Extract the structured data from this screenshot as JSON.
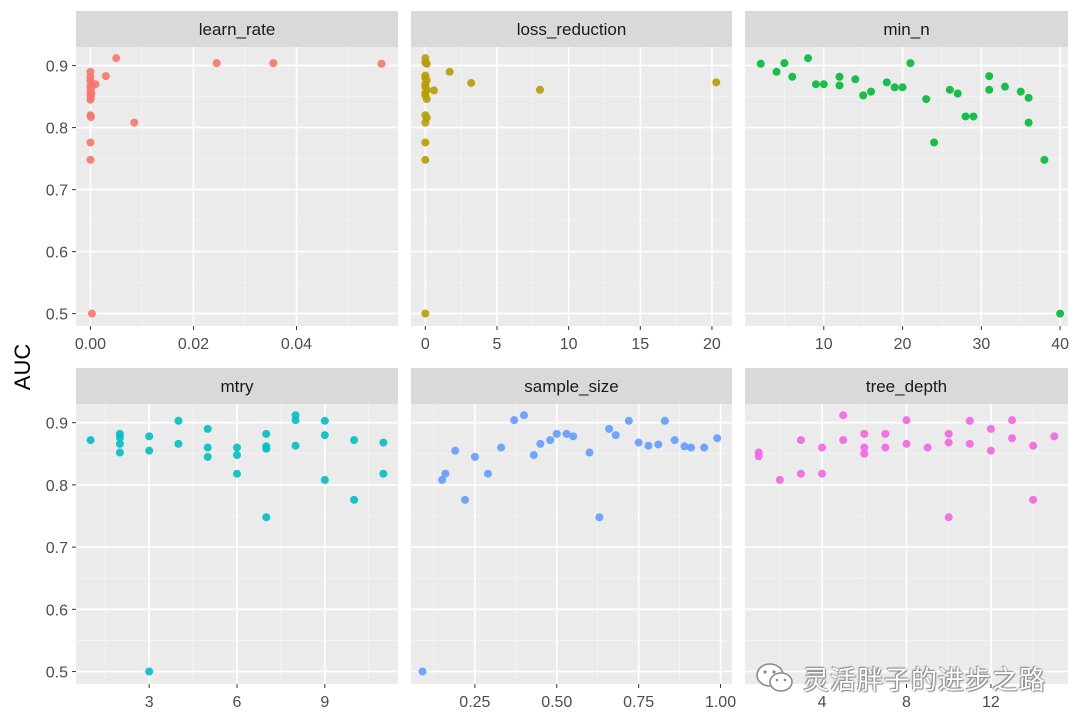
{
  "chart_data": {
    "type": "scatter",
    "ylabel": "AUC",
    "ylim": [
      0.48,
      0.93
    ],
    "y_ticks": [
      0.5,
      0.6,
      0.7,
      0.8,
      0.9
    ],
    "y_tick_labels": [
      "0.5",
      "0.6",
      "0.7",
      "0.8",
      "0.9"
    ],
    "grid": true,
    "panels": [
      {
        "name": "learn_rate",
        "color": "#F8766D",
        "xlim": [
          -0.0028,
          0.0597
        ],
        "x_ticks": [
          0,
          0.02,
          0.04
        ],
        "x_tick_labels": [
          "0.00",
          "0.02",
          "0.04"
        ],
        "points": [
          {
            "x": 0.0,
            "y": 0.89
          },
          {
            "x": 0.0,
            "y": 0.882
          },
          {
            "x": 0.0,
            "y": 0.876
          },
          {
            "x": 0.0001,
            "y": 0.87
          },
          {
            "x": 0.0,
            "y": 0.866
          },
          {
            "x": 0.0001,
            "y": 0.862
          },
          {
            "x": 0.0,
            "y": 0.858
          },
          {
            "x": 0.0002,
            "y": 0.855
          },
          {
            "x": 0.0,
            "y": 0.852
          },
          {
            "x": 0.0001,
            "y": 0.848
          },
          {
            "x": 0.0,
            "y": 0.845
          },
          {
            "x": 0.0,
            "y": 0.82
          },
          {
            "x": 0.0001,
            "y": 0.817
          },
          {
            "x": 0.0,
            "y": 0.776
          },
          {
            "x": 0.0,
            "y": 0.748
          },
          {
            "x": 0.0003,
            "y": 0.5
          },
          {
            "x": 0.001,
            "y": 0.87
          },
          {
            "x": 0.003,
            "y": 0.883
          },
          {
            "x": 0.005,
            "y": 0.912
          },
          {
            "x": 0.0085,
            "y": 0.808
          },
          {
            "x": 0.0245,
            "y": 0.904
          },
          {
            "x": 0.0355,
            "y": 0.904
          },
          {
            "x": 0.0565,
            "y": 0.903
          }
        ]
      },
      {
        "name": "loss_reduction",
        "color": "#B79F00",
        "xlim": [
          -1.0,
          21.4
        ],
        "x_ticks": [
          0,
          5,
          10,
          15,
          20
        ],
        "x_tick_labels": [
          "0",
          "5",
          "10",
          "15",
          "20"
        ],
        "points": [
          {
            "x": 0.0,
            "y": 0.912
          },
          {
            "x": 0.0,
            "y": 0.905
          },
          {
            "x": 0.1,
            "y": 0.903
          },
          {
            "x": 0.0,
            "y": 0.884
          },
          {
            "x": 0.0,
            "y": 0.88
          },
          {
            "x": 0.1,
            "y": 0.876
          },
          {
            "x": 0.0,
            "y": 0.87
          },
          {
            "x": 0.0,
            "y": 0.866
          },
          {
            "x": 0.1,
            "y": 0.861
          },
          {
            "x": 0.0,
            "y": 0.856
          },
          {
            "x": 0.0,
            "y": 0.852
          },
          {
            "x": 0.1,
            "y": 0.846
          },
          {
            "x": 0.0,
            "y": 0.82
          },
          {
            "x": 0.1,
            "y": 0.816
          },
          {
            "x": 0.0,
            "y": 0.808
          },
          {
            "x": 0.0,
            "y": 0.776
          },
          {
            "x": 0.0,
            "y": 0.748
          },
          {
            "x": 0.0,
            "y": 0.5
          },
          {
            "x": 0.6,
            "y": 0.86
          },
          {
            "x": 1.7,
            "y": 0.89
          },
          {
            "x": 3.2,
            "y": 0.872
          },
          {
            "x": 8.0,
            "y": 0.861
          },
          {
            "x": 20.3,
            "y": 0.873
          }
        ]
      },
      {
        "name": "min_n",
        "color": "#00BA38",
        "xlim": [
          0.0,
          41.0
        ],
        "x_ticks": [
          10,
          20,
          30,
          40
        ],
        "x_tick_labels": [
          "10",
          "20",
          "30",
          "40"
        ],
        "points": [
          {
            "x": 2,
            "y": 0.903
          },
          {
            "x": 4,
            "y": 0.89
          },
          {
            "x": 5,
            "y": 0.904
          },
          {
            "x": 6,
            "y": 0.882
          },
          {
            "x": 8,
            "y": 0.912
          },
          {
            "x": 9,
            "y": 0.87
          },
          {
            "x": 10,
            "y": 0.87
          },
          {
            "x": 12,
            "y": 0.882
          },
          {
            "x": 12,
            "y": 0.868
          },
          {
            "x": 14,
            "y": 0.878
          },
          {
            "x": 15,
            "y": 0.852
          },
          {
            "x": 16,
            "y": 0.858
          },
          {
            "x": 18,
            "y": 0.873
          },
          {
            "x": 19,
            "y": 0.865
          },
          {
            "x": 20,
            "y": 0.865
          },
          {
            "x": 21,
            "y": 0.904
          },
          {
            "x": 23,
            "y": 0.846
          },
          {
            "x": 24,
            "y": 0.776
          },
          {
            "x": 26,
            "y": 0.861
          },
          {
            "x": 27,
            "y": 0.855
          },
          {
            "x": 28,
            "y": 0.818
          },
          {
            "x": 29,
            "y": 0.818
          },
          {
            "x": 31,
            "y": 0.883
          },
          {
            "x": 31,
            "y": 0.861
          },
          {
            "x": 33,
            "y": 0.866
          },
          {
            "x": 35,
            "y": 0.858
          },
          {
            "x": 36,
            "y": 0.848
          },
          {
            "x": 36,
            "y": 0.808
          },
          {
            "x": 38,
            "y": 0.748
          },
          {
            "x": 40,
            "y": 0.5
          }
        ]
      },
      {
        "name": "mtry",
        "color": "#00BFC4",
        "xlim": [
          0.5,
          11.5
        ],
        "x_ticks": [
          3,
          6,
          9
        ],
        "x_tick_labels": [
          "3",
          "6",
          "9"
        ],
        "points": [
          {
            "x": 1,
            "y": 0.872
          },
          {
            "x": 2,
            "y": 0.882
          },
          {
            "x": 2,
            "y": 0.876
          },
          {
            "x": 2,
            "y": 0.866
          },
          {
            "x": 2,
            "y": 0.852
          },
          {
            "x": 3,
            "y": 0.878
          },
          {
            "x": 3,
            "y": 0.855
          },
          {
            "x": 3,
            "y": 0.5
          },
          {
            "x": 4,
            "y": 0.903
          },
          {
            "x": 4,
            "y": 0.866
          },
          {
            "x": 5,
            "y": 0.89
          },
          {
            "x": 5,
            "y": 0.86
          },
          {
            "x": 5,
            "y": 0.845
          },
          {
            "x": 6,
            "y": 0.86
          },
          {
            "x": 6,
            "y": 0.848
          },
          {
            "x": 6,
            "y": 0.818
          },
          {
            "x": 7,
            "y": 0.882
          },
          {
            "x": 7,
            "y": 0.862
          },
          {
            "x": 7,
            "y": 0.858
          },
          {
            "x": 7,
            "y": 0.748
          },
          {
            "x": 8,
            "y": 0.912
          },
          {
            "x": 8,
            "y": 0.904
          },
          {
            "x": 8,
            "y": 0.863
          },
          {
            "x": 9,
            "y": 0.903
          },
          {
            "x": 9,
            "y": 0.88
          },
          {
            "x": 9,
            "y": 0.808
          },
          {
            "x": 10,
            "y": 0.872
          },
          {
            "x": 10,
            "y": 0.776
          },
          {
            "x": 11,
            "y": 0.868
          },
          {
            "x": 11,
            "y": 0.818
          }
        ]
      },
      {
        "name": "sample_size",
        "color": "#619CFF",
        "xlim": [
          0.055,
          1.035
        ],
        "x_ticks": [
          0.25,
          0.5,
          0.75,
          1.0
        ],
        "x_tick_labels": [
          "0.25",
          "0.50",
          "0.75",
          "1.00"
        ],
        "points": [
          {
            "x": 0.09,
            "y": 0.5
          },
          {
            "x": 0.15,
            "y": 0.808
          },
          {
            "x": 0.16,
            "y": 0.818
          },
          {
            "x": 0.19,
            "y": 0.855
          },
          {
            "x": 0.22,
            "y": 0.776
          },
          {
            "x": 0.25,
            "y": 0.845
          },
          {
            "x": 0.29,
            "y": 0.818
          },
          {
            "x": 0.33,
            "y": 0.86
          },
          {
            "x": 0.37,
            "y": 0.904
          },
          {
            "x": 0.4,
            "y": 0.912
          },
          {
            "x": 0.43,
            "y": 0.848
          },
          {
            "x": 0.45,
            "y": 0.866
          },
          {
            "x": 0.48,
            "y": 0.872
          },
          {
            "x": 0.5,
            "y": 0.882
          },
          {
            "x": 0.53,
            "y": 0.882
          },
          {
            "x": 0.55,
            "y": 0.878
          },
          {
            "x": 0.6,
            "y": 0.852
          },
          {
            "x": 0.63,
            "y": 0.748
          },
          {
            "x": 0.66,
            "y": 0.89
          },
          {
            "x": 0.68,
            "y": 0.88
          },
          {
            "x": 0.72,
            "y": 0.903
          },
          {
            "x": 0.75,
            "y": 0.868
          },
          {
            "x": 0.78,
            "y": 0.863
          },
          {
            "x": 0.81,
            "y": 0.865
          },
          {
            "x": 0.83,
            "y": 0.903
          },
          {
            "x": 0.86,
            "y": 0.872
          },
          {
            "x": 0.89,
            "y": 0.862
          },
          {
            "x": 0.91,
            "y": 0.86
          },
          {
            "x": 0.95,
            "y": 0.86
          },
          {
            "x": 0.99,
            "y": 0.875
          }
        ]
      },
      {
        "name": "tree_depth",
        "color": "#F564E3",
        "xlim": [
          0.35,
          15.65
        ],
        "x_ticks": [
          4,
          8,
          12
        ],
        "x_tick_labels": [
          "4",
          "8",
          "12"
        ],
        "points": [
          {
            "x": 1,
            "y": 0.852
          },
          {
            "x": 1,
            "y": 0.846
          },
          {
            "x": 2,
            "y": 0.808
          },
          {
            "x": 3,
            "y": 0.872
          },
          {
            "x": 3,
            "y": 0.818
          },
          {
            "x": 4,
            "y": 0.86
          },
          {
            "x": 4,
            "y": 0.818
          },
          {
            "x": 5,
            "y": 0.912
          },
          {
            "x": 5,
            "y": 0.872
          },
          {
            "x": 6,
            "y": 0.882
          },
          {
            "x": 6,
            "y": 0.86
          },
          {
            "x": 6,
            "y": 0.85
          },
          {
            "x": 7,
            "y": 0.882
          },
          {
            "x": 7,
            "y": 0.86
          },
          {
            "x": 8,
            "y": 0.904
          },
          {
            "x": 8,
            "y": 0.866
          },
          {
            "x": 9,
            "y": 0.86
          },
          {
            "x": 10,
            "y": 0.882
          },
          {
            "x": 10,
            "y": 0.868
          },
          {
            "x": 10,
            "y": 0.748
          },
          {
            "x": 11,
            "y": 0.903
          },
          {
            "x": 11,
            "y": 0.866
          },
          {
            "x": 12,
            "y": 0.89
          },
          {
            "x": 12,
            "y": 0.855
          },
          {
            "x": 13,
            "y": 0.904
          },
          {
            "x": 13,
            "y": 0.875
          },
          {
            "x": 14,
            "y": 0.863
          },
          {
            "x": 14,
            "y": 0.776
          },
          {
            "x": 15,
            "y": 0.878
          }
        ]
      }
    ]
  },
  "watermark": {
    "text": "灵活胖子的进步之路",
    "icon": "wechat-icon"
  }
}
